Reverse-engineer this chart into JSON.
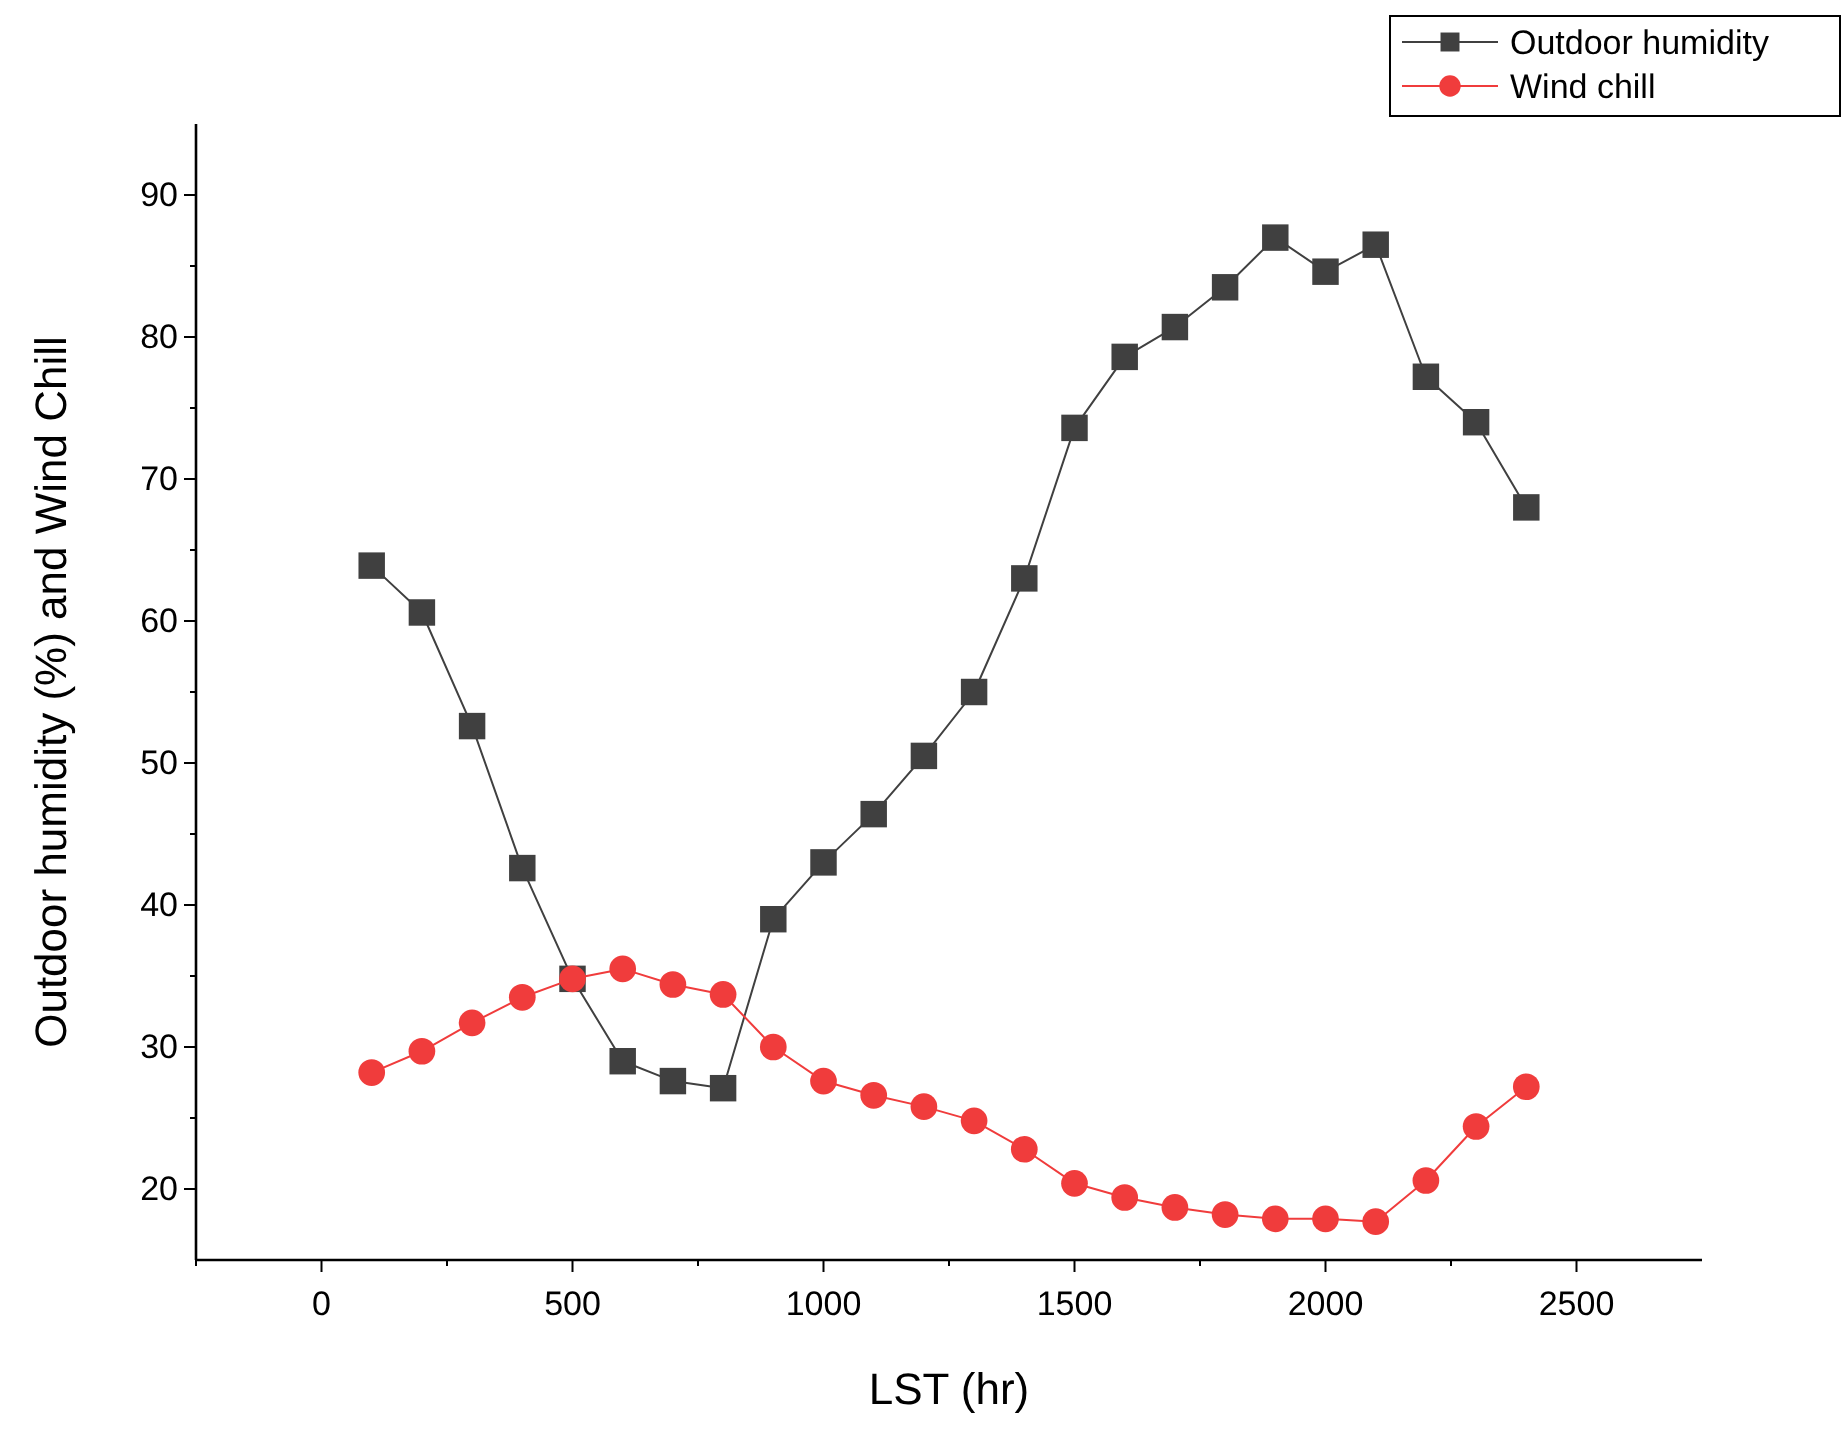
{
  "chart_data": {
    "type": "line",
    "xlabel": "LST (hr)",
    "ylabel": "Outdoor humidity (%) and Wind Chill",
    "x": [
      100,
      200,
      300,
      400,
      500,
      600,
      700,
      800,
      900,
      1000,
      1100,
      1200,
      1300,
      1400,
      1500,
      1600,
      1700,
      1800,
      1900,
      2000,
      2100,
      2200,
      2300,
      2400
    ],
    "series": [
      {
        "name": "Outdoor humidity",
        "color": "#404040",
        "marker": "square",
        "values": [
          63.9,
          60.6,
          52.6,
          42.6,
          34.8,
          29,
          27.6,
          27.1,
          39,
          43,
          46.4,
          50.5,
          55,
          63,
          73.6,
          78.6,
          80.7,
          83.5,
          87,
          84.6,
          86.5,
          77.2,
          74,
          68
        ]
      },
      {
        "name": "Wind chill",
        "color": "#f03c3c",
        "marker": "circle",
        "values": [
          28.2,
          29.7,
          31.7,
          33.5,
          34.8,
          35.5,
          34.4,
          33.7,
          30,
          27.6,
          26.6,
          25.8,
          24.8,
          22.8,
          20.4,
          19.4,
          18.7,
          18.2,
          17.9,
          17.9,
          17.7,
          20.6,
          24.4,
          27.2
        ]
      }
    ],
    "xlim": [
      -250,
      2750
    ],
    "xticks": [
      {
        "value": -250,
        "label": null
      },
      0,
      {
        "value": 250,
        "label": null
      },
      500,
      {
        "value": 750,
        "label": null
      },
      1000,
      {
        "value": 1250,
        "label": null
      },
      1500,
      {
        "value": 1750,
        "label": null
      },
      2000,
      {
        "value": 2250,
        "label": null
      },
      2500
    ],
    "ylim": [
      15,
      95
    ],
    "yticks": [
      20,
      {
        "value": 25,
        "label": null
      },
      30,
      {
        "value": 35,
        "label": null
      },
      40,
      {
        "value": 45,
        "label": null
      },
      50,
      {
        "value": 55,
        "label": null
      },
      60,
      {
        "value": 65,
        "label": null
      },
      70,
      {
        "value": 75,
        "label": null
      },
      80,
      {
        "value": 85,
        "label": null
      },
      90
    ],
    "legend": "top right",
    "grid": false,
    "line_style": "solid"
  }
}
